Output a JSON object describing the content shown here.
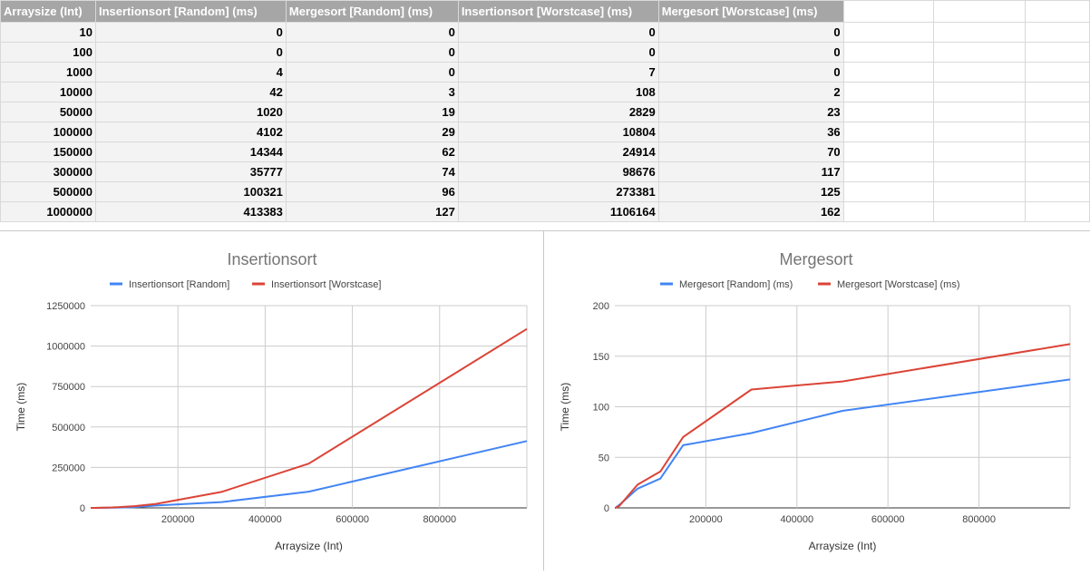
{
  "table": {
    "headers": [
      "Arraysize (Int)",
      "Insertionsort [Random] (ms)",
      "Mergesort [Random] (ms)",
      "Insertionsort [Worstcase] (ms)",
      "Mergesort [Worstcase] (ms)"
    ],
    "rows": [
      [
        "10",
        "0",
        "0",
        "0",
        "0"
      ],
      [
        "100",
        "0",
        "0",
        "0",
        "0"
      ],
      [
        "1000",
        "4",
        "0",
        "7",
        "0"
      ],
      [
        "10000",
        "42",
        "3",
        "108",
        "2"
      ],
      [
        "50000",
        "1020",
        "19",
        "2829",
        "23"
      ],
      [
        "100000",
        "4102",
        "29",
        "10804",
        "36"
      ],
      [
        "150000",
        "14344",
        "62",
        "24914",
        "70"
      ],
      [
        "300000",
        "35777",
        "74",
        "98676",
        "117"
      ],
      [
        "500000",
        "100321",
        "96",
        "273381",
        "125"
      ],
      [
        "1000000",
        "413383",
        "127",
        "1106164",
        "162"
      ]
    ]
  },
  "chart_data": [
    {
      "type": "line",
      "title": "Insertionsort",
      "xlabel": "Arraysize (Int)",
      "ylabel": "Time (ms)",
      "x": [
        10,
        100,
        1000,
        10000,
        50000,
        100000,
        150000,
        300000,
        500000,
        1000000
      ],
      "xlim": [
        0,
        1000000
      ],
      "ylim": [
        0,
        1250000
      ],
      "xticks": [
        200000,
        400000,
        600000,
        800000
      ],
      "xtick_labels": [
        "200000",
        "400000",
        "600000",
        "800000"
      ],
      "yticks": [
        0,
        250000,
        500000,
        750000,
        1000000,
        1250000
      ],
      "ytick_labels": [
        "0",
        "250000",
        "500000",
        "750000",
        "1000000",
        "1250000"
      ],
      "grid": true,
      "legend_position": "top",
      "series": [
        {
          "name": "Insertionsort [Random]",
          "color": "#4285f4",
          "values": [
            0,
            0,
            4,
            42,
            1020,
            4102,
            14344,
            35777,
            100321,
            413383
          ]
        },
        {
          "name": "Insertionsort [Worstcase]",
          "color": "#db4437",
          "values": [
            0,
            0,
            7,
            108,
            2829,
            10804,
            24914,
            98676,
            273381,
            1106164
          ]
        }
      ]
    },
    {
      "type": "line",
      "title": "Mergesort",
      "xlabel": "Arraysize (Int)",
      "ylabel": "Time (ms)",
      "x": [
        10,
        100,
        1000,
        10000,
        50000,
        100000,
        150000,
        300000,
        500000,
        1000000
      ],
      "xlim": [
        0,
        1000000
      ],
      "ylim": [
        0,
        200
      ],
      "xticks": [
        200000,
        400000,
        600000,
        800000
      ],
      "xtick_labels": [
        "200000",
        "400000",
        "600000",
        "800000"
      ],
      "yticks": [
        0,
        50,
        100,
        150,
        200
      ],
      "ytick_labels": [
        "0",
        "50",
        "100",
        "150",
        "200"
      ],
      "grid": true,
      "legend_position": "top",
      "series": [
        {
          "name": "Mergesort [Random] (ms)",
          "color": "#4285f4",
          "values": [
            0,
            0,
            0,
            3,
            19,
            29,
            62,
            74,
            96,
            127
          ]
        },
        {
          "name": "Mergesort [Worstcase] (ms)",
          "color": "#db4437",
          "values": [
            0,
            0,
            0,
            2,
            23,
            36,
            70,
            117,
            125,
            162
          ]
        }
      ]
    }
  ]
}
